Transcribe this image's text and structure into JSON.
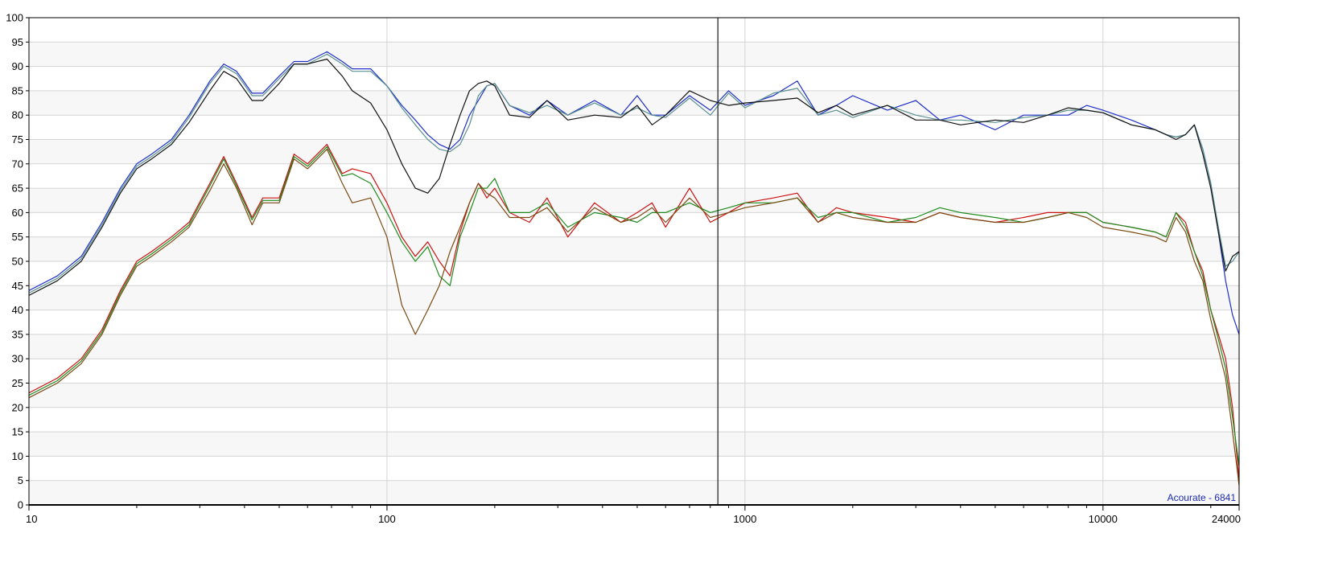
{
  "chart_data": {
    "type": "line",
    "title": "",
    "xlabel": "",
    "ylabel": "",
    "x_scale": "log",
    "xlim": [
      10,
      24000
    ],
    "ylim": [
      0,
      100
    ],
    "grid": true,
    "x_ticks": [
      10,
      100,
      1000,
      10000,
      24000
    ],
    "x_tick_labels": [
      "10",
      "100",
      "1000",
      "10000",
      "24000"
    ],
    "y_ticks": [
      0,
      5,
      10,
      15,
      20,
      25,
      30,
      35,
      40,
      45,
      50,
      55,
      60,
      65,
      70,
      75,
      80,
      85,
      90,
      95,
      100
    ],
    "y_tick_labels": [
      "0",
      "5",
      "10",
      "15",
      "20",
      "25",
      "30",
      "35",
      "40",
      "45",
      "50",
      "55",
      "60",
      "65",
      "70",
      "75",
      "80",
      "85",
      "90",
      "95",
      "100"
    ],
    "cursor_x": 840,
    "watermark": "Acourate - 6841",
    "series": [
      {
        "color": "#1f2fc8",
        "x": [
          10,
          12,
          14,
          16,
          18,
          20,
          22,
          25,
          28,
          32,
          35,
          38,
          42,
          45,
          50,
          55,
          60,
          68,
          75,
          80,
          90,
          100,
          110,
          120,
          130,
          140,
          150,
          160,
          170,
          180,
          190,
          200,
          220,
          250,
          280,
          320,
          380,
          450,
          500,
          550,
          600,
          700,
          800,
          900,
          1000,
          1200,
          1400,
          1600,
          1800,
          2000,
          2500,
          3000,
          3500,
          4000,
          5000,
          6000,
          7000,
          8000,
          9000,
          10000,
          12000,
          14000,
          15000,
          16000,
          17000,
          18000,
          19000,
          20000,
          21000,
          22000,
          23000,
          24000
        ],
        "y": [
          44,
          47,
          51,
          58,
          65,
          70,
          72,
          75,
          80,
          87,
          90.5,
          89,
          84.5,
          84.5,
          88,
          91,
          91,
          93,
          91,
          89.5,
          89.5,
          86,
          82,
          79,
          76,
          74,
          73,
          75,
          80,
          83,
          86,
          86.5,
          82,
          80,
          83,
          80,
          83,
          80,
          84,
          80,
          80,
          84,
          81,
          85,
          82,
          84,
          87,
          80,
          82,
          84,
          81,
          83,
          79,
          80,
          77,
          80,
          80,
          80,
          82,
          81,
          79,
          77,
          76,
          75.5,
          76,
          78,
          73,
          66,
          56,
          46,
          39,
          35
        ]
      },
      {
        "color": "#5a9090",
        "x": [
          10,
          12,
          14,
          16,
          18,
          20,
          22,
          25,
          28,
          32,
          35,
          38,
          42,
          45,
          50,
          55,
          60,
          68,
          75,
          80,
          90,
          100,
          110,
          120,
          130,
          140,
          150,
          160,
          170,
          180,
          190,
          200,
          220,
          250,
          280,
          320,
          380,
          450,
          500,
          550,
          600,
          700,
          800,
          900,
          1000,
          1200,
          1400,
          1600,
          1800,
          2000,
          2500,
          3000,
          3500,
          4000,
          5000,
          6000,
          7000,
          8000,
          9000,
          10000,
          12000,
          14000,
          15000,
          16000,
          17000,
          18000,
          19000,
          20000,
          21000,
          22000,
          23000,
          24000
        ],
        "y": [
          43.5,
          46.5,
          50.5,
          57.5,
          64.5,
          69.5,
          71.5,
          74.5,
          79.5,
          86.5,
          90,
          88.5,
          84,
          84,
          87.5,
          90.5,
          90.5,
          92.5,
          90.5,
          89,
          89,
          86,
          81.5,
          78,
          75,
          73,
          72.5,
          74,
          78,
          84,
          86,
          86.5,
          82,
          80.5,
          82,
          80,
          82.5,
          80,
          81.5,
          80,
          79.5,
          83.5,
          80,
          84.5,
          81.5,
          84.5,
          85.5,
          80,
          81,
          79.5,
          82,
          80,
          79,
          79,
          78.5,
          79.5,
          80,
          81,
          81,
          80.5,
          78,
          77,
          76,
          75.5,
          76,
          78,
          73,
          66,
          57,
          49,
          50,
          52
        ]
      },
      {
        "color": "#111111",
        "x": [
          10,
          12,
          14,
          16,
          18,
          20,
          22,
          25,
          28,
          32,
          35,
          38,
          42,
          45,
          50,
          55,
          60,
          68,
          75,
          80,
          90,
          100,
          110,
          120,
          130,
          140,
          150,
          160,
          170,
          180,
          190,
          200,
          220,
          250,
          280,
          320,
          380,
          450,
          500,
          550,
          600,
          700,
          800,
          900,
          1000,
          1200,
          1400,
          1600,
          1800,
          2000,
          2500,
          3000,
          3500,
          4000,
          5000,
          6000,
          7000,
          8000,
          9000,
          10000,
          12000,
          14000,
          15000,
          16000,
          17000,
          18000,
          19000,
          20000,
          21000,
          22000,
          23000,
          24000
        ],
        "y": [
          43,
          46,
          50,
          57,
          64,
          69,
          71,
          74,
          78.5,
          85,
          89,
          87.5,
          83,
          83,
          86.5,
          90.5,
          90.5,
          91.5,
          88,
          85,
          82.5,
          77,
          70,
          65,
          64,
          67,
          74,
          80,
          85,
          86.5,
          87,
          86,
          80,
          79.5,
          83,
          79,
          80,
          79.5,
          82,
          78,
          80,
          85,
          83,
          82,
          82.5,
          83,
          83.5,
          80.5,
          82,
          80,
          82,
          79,
          79,
          78,
          79,
          78.5,
          80,
          81.5,
          81,
          80.5,
          78,
          77,
          76,
          75,
          76,
          78,
          72,
          65,
          56,
          48,
          51,
          52
        ]
      },
      {
        "color": "#cc1111",
        "x": [
          10,
          12,
          14,
          16,
          18,
          20,
          22,
          25,
          28,
          32,
          35,
          38,
          42,
          45,
          50,
          55,
          60,
          68,
          75,
          80,
          90,
          100,
          110,
          120,
          130,
          140,
          150,
          160,
          170,
          180,
          190,
          200,
          220,
          250,
          280,
          320,
          380,
          450,
          500,
          550,
          600,
          700,
          800,
          900,
          1000,
          1200,
          1400,
          1600,
          1800,
          2000,
          2500,
          3000,
          3500,
          4000,
          5000,
          6000,
          7000,
          8000,
          9000,
          10000,
          12000,
          14000,
          15000,
          16000,
          17000,
          18000,
          19000,
          20000,
          21000,
          22000,
          23000,
          24000
        ],
        "y": [
          23,
          26,
          30,
          36,
          44,
          50,
          52,
          55,
          58,
          66,
          71.5,
          66,
          59,
          63,
          63,
          72,
          70,
          74,
          68,
          69,
          68,
          62,
          55,
          51,
          54,
          50,
          47,
          56,
          62,
          66,
          63,
          65,
          60,
          58,
          63,
          55,
          62,
          58,
          60,
          62,
          57,
          65,
          58,
          60,
          62,
          63,
          64,
          58,
          61,
          60,
          59,
          58,
          60,
          59,
          58,
          59,
          60,
          60,
          60,
          58,
          57,
          56,
          55,
          60,
          58,
          52,
          48,
          40,
          35,
          30,
          20,
          5
        ]
      },
      {
        "color": "#1f8a1f",
        "x": [
          10,
          12,
          14,
          16,
          18,
          20,
          22,
          25,
          28,
          32,
          35,
          38,
          42,
          45,
          50,
          55,
          60,
          68,
          75,
          80,
          90,
          100,
          110,
          120,
          130,
          140,
          150,
          160,
          170,
          180,
          190,
          200,
          220,
          250,
          280,
          320,
          380,
          450,
          500,
          550,
          600,
          700,
          800,
          900,
          1000,
          1200,
          1400,
          1600,
          1800,
          2000,
          2500,
          3000,
          3500,
          4000,
          5000,
          6000,
          7000,
          8000,
          9000,
          10000,
          12000,
          14000,
          15000,
          16000,
          17000,
          18000,
          19000,
          20000,
          21000,
          22000,
          23000,
          24000
        ],
        "y": [
          22.5,
          25.5,
          29.5,
          35.5,
          43.5,
          49.5,
          51.5,
          54.5,
          57.5,
          65.5,
          71,
          65.5,
          58.5,
          62.5,
          62.5,
          71.5,
          69.5,
          73.5,
          67.5,
          68,
          66,
          60,
          54,
          50,
          53,
          47,
          45,
          55,
          60,
          65,
          65,
          67,
          60,
          60,
          62,
          57,
          60,
          59,
          58,
          60,
          60,
          62,
          60,
          61,
          62,
          62,
          63,
          59,
          60,
          60,
          58,
          59,
          61,
          60,
          59,
          58,
          59,
          60,
          60,
          58,
          57,
          56,
          55,
          60,
          57,
          52,
          47,
          40,
          34,
          28,
          18,
          8
        ]
      },
      {
        "color": "#7a4a14",
        "x": [
          10,
          12,
          14,
          16,
          18,
          20,
          22,
          25,
          28,
          32,
          35,
          38,
          42,
          45,
          50,
          55,
          60,
          68,
          75,
          80,
          90,
          100,
          110,
          120,
          130,
          140,
          150,
          160,
          170,
          180,
          190,
          200,
          220,
          250,
          280,
          320,
          380,
          450,
          500,
          550,
          600,
          700,
          800,
          900,
          1000,
          1200,
          1400,
          1600,
          1800,
          2000,
          2500,
          3000,
          3500,
          4000,
          5000,
          6000,
          7000,
          8000,
          9000,
          10000,
          12000,
          14000,
          15000,
          16000,
          17000,
          18000,
          19000,
          20000,
          21000,
          22000,
          23000,
          24000
        ],
        "y": [
          22,
          25,
          29,
          35,
          43,
          49,
          51,
          54,
          57,
          64.5,
          70,
          65,
          57.5,
          62,
          62,
          71,
          69,
          73,
          66,
          62,
          63,
          55,
          41,
          35,
          40,
          45,
          52,
          57,
          62,
          66,
          64,
          63,
          59,
          59,
          61,
          56,
          61,
          58,
          59,
          61,
          58,
          63,
          59,
          60,
          61,
          62,
          63,
          58,
          60,
          59,
          58,
          58,
          60,
          59,
          58,
          58,
          59,
          60,
          59,
          57,
          56,
          55,
          54,
          59,
          56,
          50,
          46,
          38,
          32,
          26,
          15,
          4
        ]
      }
    ]
  }
}
